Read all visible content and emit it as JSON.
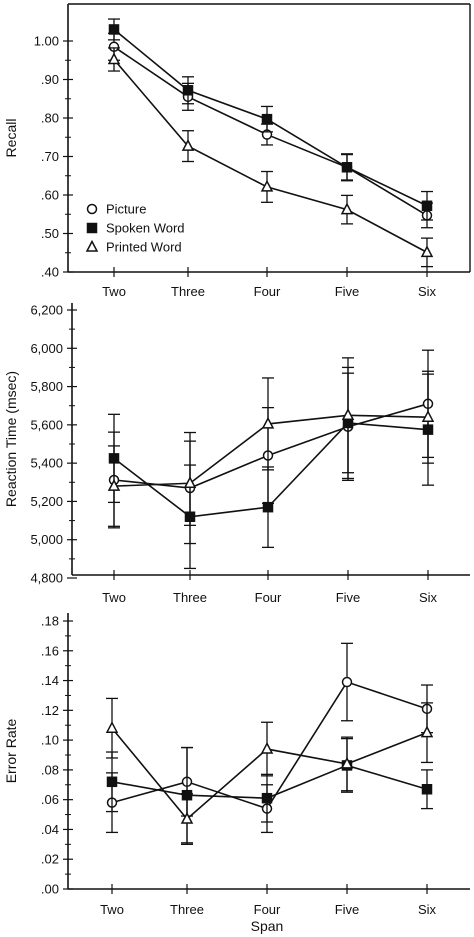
{
  "chart_data": [
    {
      "type": "line",
      "ylabel": "Recall",
      "xlabel": "",
      "categories": [
        "Two",
        "Three",
        "Four",
        "Five",
        "Six"
      ],
      "ylim": [
        0.4,
        1.1
      ],
      "yticks": [
        ".40",
        ".50",
        ".60",
        ".70",
        ".80",
        ".90",
        "1.00"
      ],
      "ytick_values": [
        0.4,
        0.5,
        0.6,
        0.7,
        0.8,
        0.9,
        1.0
      ],
      "legend": {
        "position": "bottom-left"
      },
      "series": [
        {
          "name": "Picture",
          "marker": "circle",
          "values": [
            0.985,
            0.855,
            0.757,
            0.672,
            0.547
          ],
          "errors": [
            0.035,
            0.035,
            0.027,
            0.035,
            0.032
          ]
        },
        {
          "name": "Spoken Word",
          "marker": "square",
          "values": [
            1.03,
            0.872,
            0.797,
            0.672,
            0.572
          ],
          "errors": [
            0.027,
            0.035,
            0.033,
            0.033,
            0.037
          ]
        },
        {
          "name": "Printed Word",
          "marker": "triangle",
          "values": [
            0.952,
            0.727,
            0.621,
            0.562,
            0.451
          ],
          "errors": [
            0.03,
            0.04,
            0.04,
            0.037,
            0.037
          ]
        }
      ]
    },
    {
      "type": "line",
      "ylabel": "Reaction Time (msec)",
      "xlabel": "",
      "categories": [
        "Two",
        "Three",
        "Four",
        "Five",
        "Six"
      ],
      "ylim": [
        4800,
        6200
      ],
      "yticks": [
        "4,800",
        "5,000",
        "5,200",
        "5,400",
        "5,600",
        "5,800",
        "6,000",
        "6,200"
      ],
      "ytick_values": [
        4800,
        5000,
        5200,
        5400,
        5600,
        5800,
        6000,
        6200
      ],
      "series": [
        {
          "name": "Picture",
          "marker": "circle",
          "values": [
            5312,
            5270,
            5440,
            5590,
            5710
          ],
          "errors": [
            250,
            290,
            250,
            280,
            280
          ]
        },
        {
          "name": "Spoken Word",
          "marker": "square",
          "values": [
            5425,
            5120,
            5170,
            5610,
            5575
          ],
          "errors": [
            230,
            270,
            210,
            290,
            290
          ]
        },
        {
          "name": "Printed Word",
          "marker": "triangle",
          "values": [
            5280,
            5295,
            5605,
            5650,
            5640
          ],
          "errors": [
            210,
            220,
            240,
            300,
            240
          ]
        }
      ]
    },
    {
      "type": "line",
      "ylabel": "Error Rate",
      "xlabel": "Span",
      "categories": [
        "Two",
        "Three",
        "Four",
        "Five",
        "Six"
      ],
      "ylim": [
        0.0,
        0.18
      ],
      "yticks": [
        ".00",
        ".02",
        ".04",
        ".06",
        ".08",
        ".10",
        ".12",
        ".14",
        ".16",
        ".18"
      ],
      "ytick_values": [
        0.0,
        0.02,
        0.04,
        0.06,
        0.08,
        0.1,
        0.12,
        0.14,
        0.16,
        0.18
      ],
      "series": [
        {
          "name": "Picture",
          "marker": "circle",
          "values": [
            0.058,
            0.072,
            0.054,
            0.139,
            0.121
          ],
          "errors": [
            0.02,
            0.023,
            0.016,
            0.026,
            0.016
          ]
        },
        {
          "name": "Spoken Word",
          "marker": "square",
          "values": [
            0.072,
            0.063,
            0.061,
            0.083,
            0.067
          ],
          "errors": [
            0.02,
            0.032,
            0.016,
            0.018,
            0.013
          ]
        },
        {
          "name": "Printed Word",
          "marker": "triangle",
          "values": [
            0.108,
            0.047,
            0.094,
            0.084,
            0.105
          ],
          "errors": [
            0.02,
            0.017,
            0.018,
            0.018,
            0.02
          ]
        }
      ]
    }
  ]
}
